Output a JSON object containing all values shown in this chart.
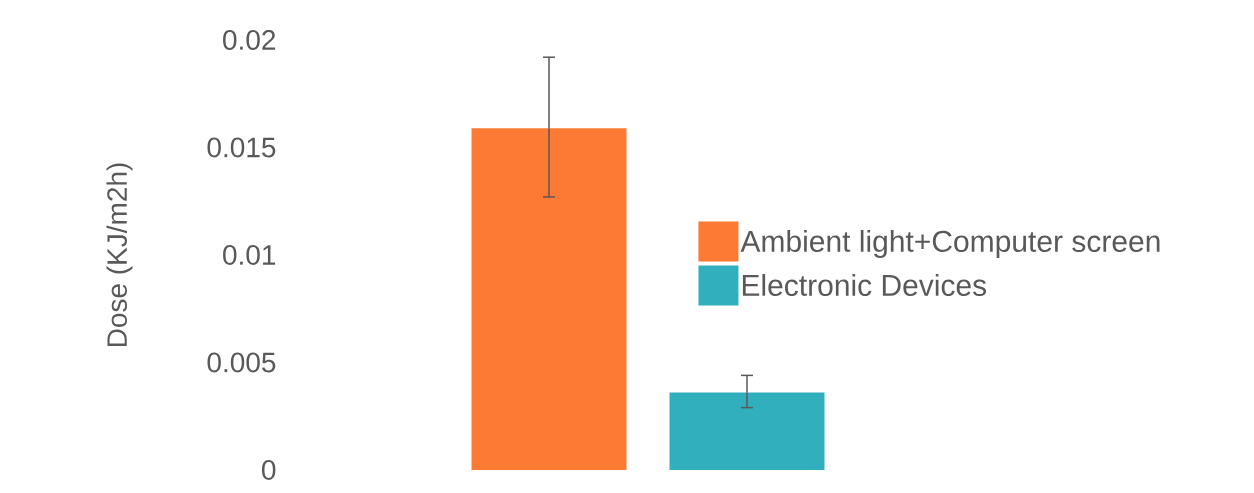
{
  "chart_data": {
    "type": "bar",
    "ylabel": "Dose (KJ/m2h)",
    "categories": [
      null
    ],
    "series": [
      {
        "name": "Ambient light+Computer screen",
        "color": "#fc7a33",
        "values": [
          0.0159
        ],
        "errors": [
          [
            0.0127,
            0.0192
          ]
        ]
      },
      {
        "name": "Electronic Devices",
        "color": "#31afbc",
        "values": [
          0.0036
        ],
        "errors": [
          [
            0.0029,
            0.0044
          ]
        ]
      }
    ],
    "ylim": [
      0,
      0.02
    ],
    "yticks": [
      0,
      0.005,
      0.01,
      0.015,
      0.02
    ],
    "grid": false,
    "legend": "right"
  }
}
